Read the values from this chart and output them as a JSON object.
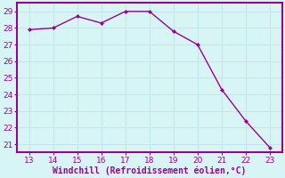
{
  "x": [
    13,
    14,
    15,
    16,
    17,
    18,
    19,
    20,
    21,
    22,
    23
  ],
  "y": [
    27.9,
    28.0,
    28.7,
    28.3,
    29.0,
    29.0,
    27.8,
    27.0,
    24.3,
    22.4,
    20.8
  ],
  "line_color": "#990099",
  "marker": "D",
  "marker_size": 2.0,
  "line_width": 1.0,
  "xlabel": "Windchill (Refroidissement éolien,°C)",
  "xlabel_color": "#990099",
  "xlim": [
    12.5,
    23.5
  ],
  "ylim": [
    20.5,
    29.5
  ],
  "xticks": [
    13,
    14,
    15,
    16,
    17,
    18,
    19,
    20,
    21,
    22,
    23
  ],
  "yticks": [
    21,
    22,
    23,
    24,
    25,
    26,
    27,
    28,
    29
  ],
  "background_color": "#d8f5f5",
  "grid_color": "#c0e8e8",
  "spine_color": "#990099",
  "tick_color": "#990099",
  "tick_fontsize": 6.5,
  "xlabel_fontsize": 7.0
}
